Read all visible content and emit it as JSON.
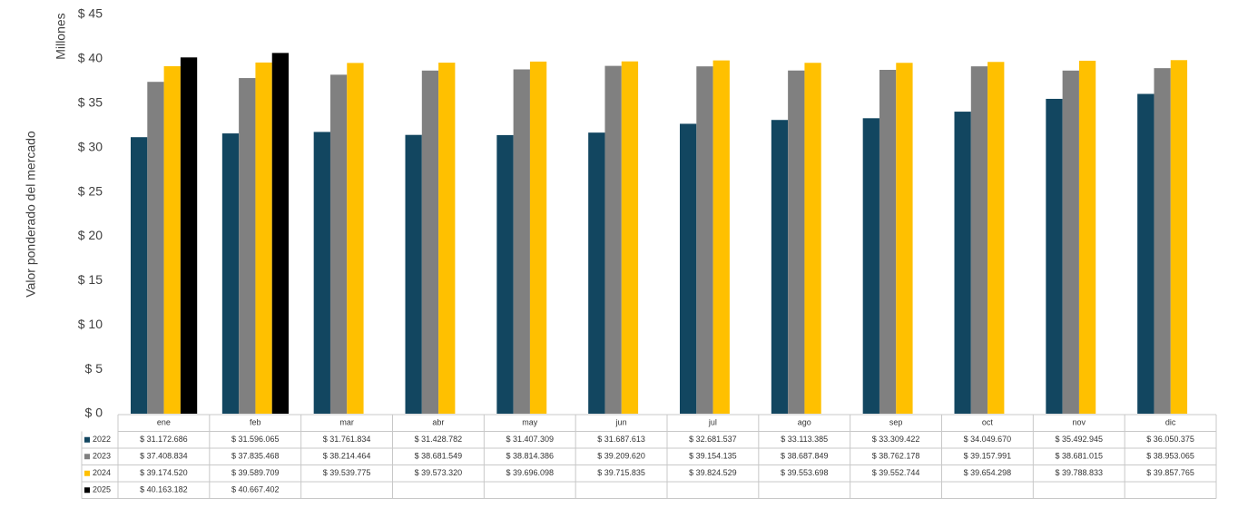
{
  "chart_data": {
    "type": "bar",
    "y_label": "Valor ponderado del mercado",
    "y_unit": "Millones",
    "categories": [
      "ene",
      "feb",
      "mar",
      "abr",
      "may",
      "jun",
      "jul",
      "ago",
      "sep",
      "oct",
      "nov",
      "dic"
    ],
    "ylim": [
      0,
      45
    ],
    "yticks": [
      {
        "value": 0,
        "label": "$ 0"
      },
      {
        "value": 5,
        "label": "$ 5"
      },
      {
        "value": 10,
        "label": "$ 10"
      },
      {
        "value": 15,
        "label": "$ 15"
      },
      {
        "value": 20,
        "label": "$ 20"
      },
      {
        "value": 25,
        "label": "$ 25"
      },
      {
        "value": 30,
        "label": "$ 30"
      },
      {
        "value": 35,
        "label": "$ 35"
      },
      {
        "value": 40,
        "label": "$ 40"
      },
      {
        "value": 45,
        "label": "$ 45"
      }
    ],
    "series": [
      {
        "name": "2022",
        "color": "#124660",
        "values": [
          31.172686,
          31.596065,
          31.761834,
          31.428782,
          31.407309,
          31.687613,
          32.681537,
          33.113385,
          33.309422,
          34.04967,
          35.492945,
          36.050375
        ],
        "value_labels": [
          "$ 31.172.686",
          "$ 31.596.065",
          "$ 31.761.834",
          "$ 31.428.782",
          "$ 31.407.309",
          "$ 31.687.613",
          "$ 32.681.537",
          "$ 33.113.385",
          "$ 33.309.422",
          "$ 34.049.670",
          "$ 35.492.945",
          "$ 36.050.375"
        ]
      },
      {
        "name": "2023",
        "color": "#808080",
        "values": [
          37.408834,
          37.835468,
          38.214464,
          38.681549,
          38.814386,
          39.20962,
          39.154135,
          38.687849,
          38.762178,
          39.157991,
          38.681015,
          38.953065
        ],
        "value_labels": [
          "$ 37.408.834",
          "$ 37.835.468",
          "$ 38.214.464",
          "$ 38.681.549",
          "$ 38.814.386",
          "$ 39.209.620",
          "$ 39.154.135",
          "$ 38.687.849",
          "$ 38.762.178",
          "$ 39.157.991",
          "$ 38.681.015",
          "$ 38.953.065"
        ]
      },
      {
        "name": "2024",
        "color": "#ffc000",
        "values": [
          39.17452,
          39.589709,
          39.539775,
          39.57332,
          39.696098,
          39.715835,
          39.824529,
          39.553698,
          39.552744,
          39.654298,
          39.788833,
          39.857765
        ],
        "value_labels": [
          "$ 39.174.520",
          "$ 39.589.709",
          "$ 39.539.775",
          "$ 39.573.320",
          "$ 39.696.098",
          "$ 39.715.835",
          "$ 39.824.529",
          "$ 39.553.698",
          "$ 39.552.744",
          "$ 39.654.298",
          "$ 39.788.833",
          "$ 39.857.765"
        ]
      },
      {
        "name": "2025",
        "color": "#000000",
        "values": [
          40.163182,
          40.667402,
          null,
          null,
          null,
          null,
          null,
          null,
          null,
          null,
          null,
          null
        ],
        "value_labels": [
          "$ 40.163.182",
          "$ 40.667.402",
          null,
          null,
          null,
          null,
          null,
          null,
          null,
          null,
          null,
          null
        ]
      }
    ]
  }
}
